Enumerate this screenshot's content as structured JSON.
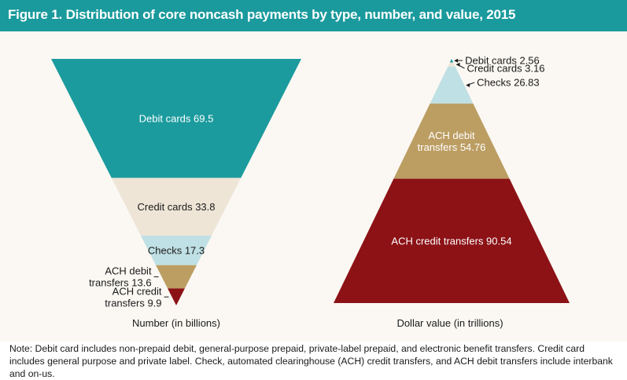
{
  "figure": {
    "title": "Figure 1. Distribution of core noncash payments by type, number, and value, 2015",
    "note": "Note: Debit card includes non-prepaid debit, general-purpose prepaid, private-label prepaid, and electronic benefit transfers. Credit card includes general purpose and private label. Check, automated clearinghouse (ACH) credit transfers, and ACH debit transfers include interbank and on-us."
  },
  "colors": {
    "header": "#1a9a9d",
    "panel": "#fbf8f3",
    "debit_cards": "#1b9b9e",
    "credit_cards": "#efe5d7",
    "checks": "#bfe0e4",
    "ach_debit": "#bc9e63",
    "ach_credit": "#8c1216"
  },
  "chart_data": [
    {
      "type": "funnel",
      "xlabel": "Number (in billions)",
      "segments": [
        {
          "label": "Debit cards",
          "value": 69.5,
          "label_lines": [
            "Debit cards 69.5"
          ],
          "color": "#1b9b9e",
          "text_color": "#ffffff"
        },
        {
          "label": "Credit cards",
          "value": 33.8,
          "label_lines": [
            "Credit cards 33.8"
          ],
          "color": "#efe5d7",
          "text_color": "#1a1a1a"
        },
        {
          "label": "Checks",
          "value": 17.3,
          "label_lines": [
            "Checks 17.3"
          ],
          "color": "#bfe0e4",
          "text_color": "#1a1a1a"
        },
        {
          "label": "ACH debit transfers",
          "value": 13.6,
          "label_lines": [
            "ACH debit",
            "transfers 13.6"
          ],
          "color": "#bc9e63",
          "text_color": "#1a1a1a"
        },
        {
          "label": "ACH credit transfers",
          "value": 9.9,
          "label_lines": [
            "ACH credit",
            "transfers 9.9"
          ],
          "color": "#8c1216",
          "text_color": "#1a1a1a"
        }
      ]
    },
    {
      "type": "pyramid",
      "xlabel": "Dollar value (in trillions)",
      "segments": [
        {
          "label": "Debit cards",
          "value": 2.56,
          "label_lines": [
            "Debit cards 2.56"
          ],
          "color": "#1b9b9e",
          "text_color": "#1a1a1a"
        },
        {
          "label": "Credit cards",
          "value": 3.16,
          "label_lines": [
            "Credit cards 3.16"
          ],
          "color": "#efe5d7",
          "text_color": "#1a1a1a"
        },
        {
          "label": "Checks",
          "value": 26.83,
          "label_lines": [
            "Checks 26.83"
          ],
          "color": "#bfe0e4",
          "text_color": "#1a1a1a"
        },
        {
          "label": "ACH debit transfers",
          "value": 54.76,
          "label_lines": [
            "ACH debit",
            "transfers 54.76"
          ],
          "color": "#bc9e63",
          "text_color": "#ffffff"
        },
        {
          "label": "ACH credit transfers",
          "value": 90.54,
          "label_lines": [
            "ACH credit transfers 90.54"
          ],
          "color": "#8c1216",
          "text_color": "#ffffff"
        }
      ]
    }
  ]
}
